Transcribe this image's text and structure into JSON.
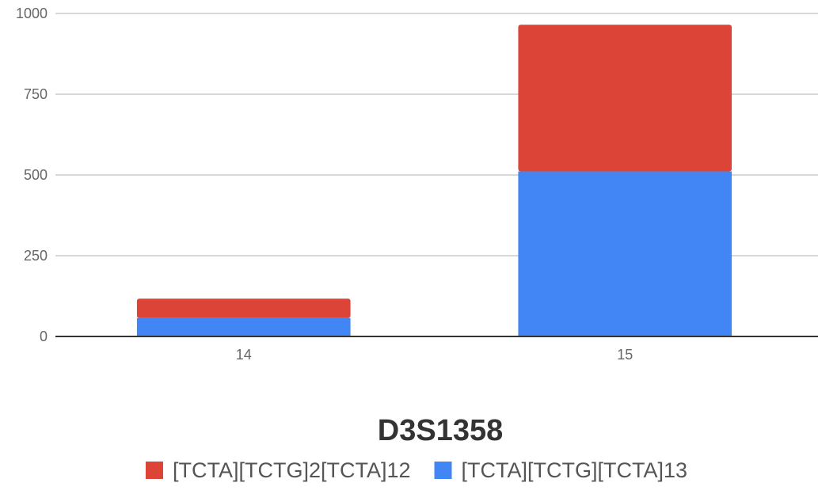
{
  "chart_data": {
    "type": "bar",
    "stacked": true,
    "title": "D3S1358",
    "xlabel": "",
    "ylabel": "",
    "categories": [
      "14",
      "15"
    ],
    "series": [
      {
        "name": "[TCTA][TCTG][TCTA]13",
        "color": "#4285f4",
        "values": [
          57,
          511
        ]
      },
      {
        "name": "[TCTA][TCTG]2[TCTA]12",
        "color": "#db4437",
        "values": [
          60,
          454
        ]
      }
    ],
    "ylim": [
      0,
      1000
    ],
    "yticks": [
      "0",
      "250",
      "500",
      "750",
      "1000"
    ],
    "grid": true,
    "legend": {
      "position": "bottom",
      "entries": [
        {
          "label": "[TCTA][TCTG]2[TCTA]12",
          "color": "#db4437"
        },
        {
          "label": "[TCTA][TCTG][TCTA]13",
          "color": "#4285f4"
        }
      ]
    }
  }
}
